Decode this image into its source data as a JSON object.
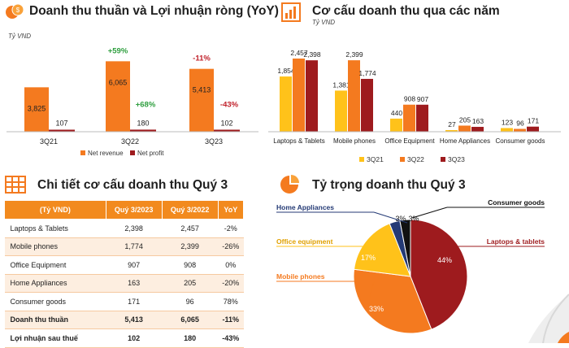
{
  "panels": {
    "p1_title": "Doanh thu thuần và Lợi nhuận ròng (YoY)",
    "p2_title": "Cơ cấu doanh thu qua các năm",
    "p3_title": "Chi tiết cơ cấu doanh thu Quý 3",
    "p4_title": "Tỷ trọng doanh thu Quý 3",
    "unit": "Tỷ VND"
  },
  "colors": {
    "orange": "#f47a1f",
    "darkred": "#9e1b1e",
    "yellow": "#ffc21a",
    "green": "#2e9e3e",
    "red": "#c0202a",
    "navy": "#243a75",
    "black": "#111111"
  },
  "chart_data": [
    {
      "type": "bar",
      "title": "Doanh thu thuần và Lợi nhuận ròng (YoY)",
      "ylabel": "Tỷ VND",
      "categories": [
        "3Q21",
        "3Q22",
        "3Q23"
      ],
      "series": [
        {
          "name": "Net revenue",
          "values": [
            3825,
            6065,
            5413
          ],
          "color": "#f47a1f"
        },
        {
          "name": "Net profit",
          "values": [
            107,
            180,
            102
          ],
          "color": "#9e1b1e"
        }
      ],
      "annotations": {
        "revenue_yoy": [
          "",
          "+59%",
          "-11%"
        ],
        "profit_yoy": [
          "",
          "+68%",
          "-43%"
        ]
      },
      "ylim": [
        0,
        7000
      ],
      "legend": "bottom"
    },
    {
      "type": "bar",
      "title": "Cơ cấu doanh thu qua các năm",
      "ylabel": "Tỷ VND",
      "categories": [
        "Laptops & Tablets",
        "Mobile phones",
        "Office Equipment",
        "Home Appliances",
        "Consumer goods"
      ],
      "series": [
        {
          "name": "3Q21",
          "values": [
            1854,
            1381,
            440,
            27,
            123
          ],
          "color": "#ffc21a"
        },
        {
          "name": "3Q22",
          "values": [
            2457,
            2399,
            908,
            205,
            96
          ],
          "color": "#f47a1f"
        },
        {
          "name": "3Q23",
          "values": [
            2398,
            1774,
            907,
            163,
            171
          ],
          "color": "#9e1b1e"
        }
      ],
      "ylim": [
        0,
        2600
      ],
      "legend": "bottom"
    },
    {
      "type": "table",
      "title": "Chi tiết cơ cấu doanh thu Quý 3",
      "columns": [
        "(Tỷ VND)",
        "Quý 3/2023",
        "Quý 3/2022",
        "YoY"
      ],
      "rows": [
        [
          "Laptops & Tablets",
          "2,398",
          "2,457",
          "-2%"
        ],
        [
          "Mobile phones",
          "1,774",
          "2,399",
          "-26%"
        ],
        [
          "Office Equipment",
          "907",
          "908",
          "0%"
        ],
        [
          "Home Appliances",
          "163",
          "205",
          "-20%"
        ],
        [
          "Consumer goods",
          "171",
          "96",
          "78%"
        ],
        [
          "Doanh thu thuần",
          "5,413",
          "6,065",
          "-11%"
        ],
        [
          "Lợi nhuận sau thuế",
          "102",
          "180",
          "-43%"
        ]
      ]
    },
    {
      "type": "pie",
      "title": "Tỷ trọng doanh thu Quý 3",
      "slices": [
        {
          "label": "Laptops & tablets",
          "value": 44,
          "text": "44%",
          "color": "#9e1b1e"
        },
        {
          "label": "Mobile phones",
          "value": 33,
          "text": "33%",
          "color": "#f47a1f"
        },
        {
          "label": "Office equipment",
          "value": 17,
          "text": "17%",
          "color": "#ffc21a"
        },
        {
          "label": "Home Appliances",
          "value": 3,
          "text": "3%",
          "color": "#243a75"
        },
        {
          "label": "Consumer goods",
          "value": 3,
          "text": "3%",
          "color": "#111111"
        }
      ]
    }
  ]
}
